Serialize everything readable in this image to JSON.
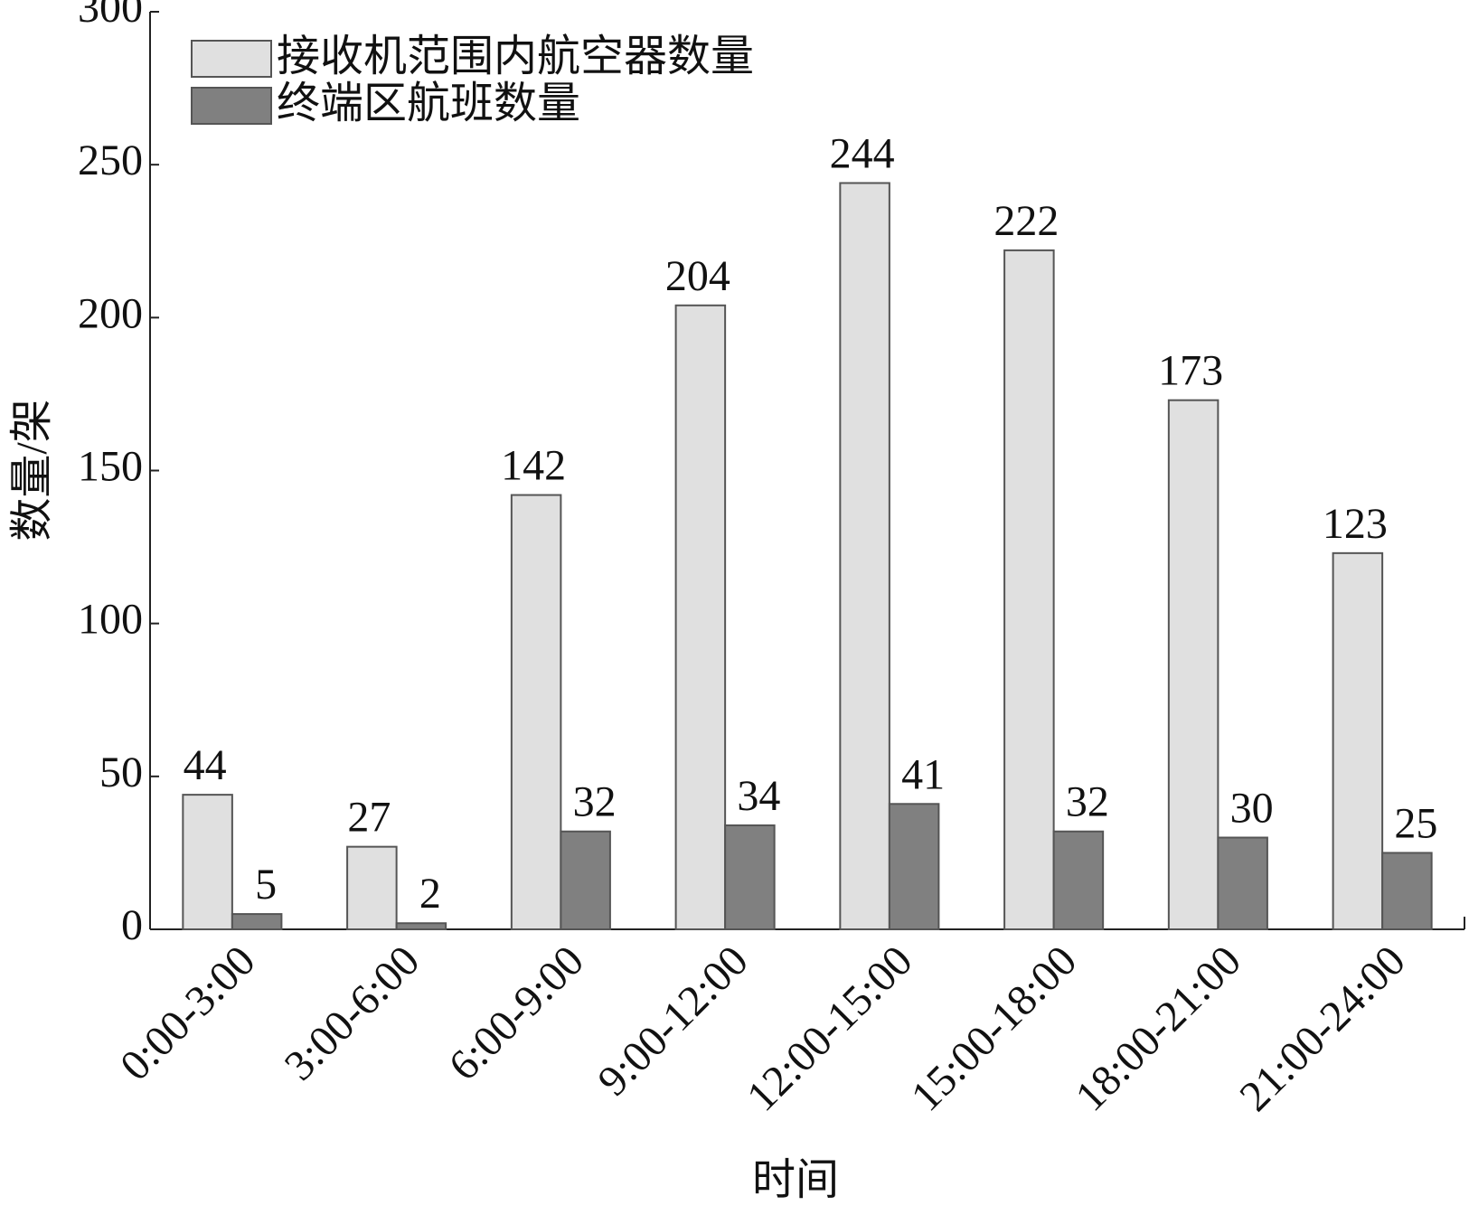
{
  "chart_data": {
    "type": "bar",
    "x_label": "时间",
    "y_label": "数量/架",
    "categories": [
      "0:00-3:00",
      "3:00-6:00",
      "6:00-9:00",
      "9:00-12:00",
      "12:00-15:00",
      "15:00-18:00",
      "18:00-21:00",
      "21:00-24:00"
    ],
    "series": [
      {
        "name": "接收机范围内航空器数量",
        "color": "#e0e0e0",
        "values": [
          44,
          27,
          142,
          204,
          244,
          222,
          173,
          123
        ]
      },
      {
        "name": "终端区航班数量",
        "color": "#808080",
        "values": [
          5,
          2,
          32,
          34,
          41,
          32,
          30,
          25
        ]
      }
    ],
    "ylim": [
      0,
      300
    ],
    "yticks": [
      0,
      50,
      100,
      150,
      200,
      250,
      300
    ],
    "grid": false,
    "legend": "upper left"
  }
}
